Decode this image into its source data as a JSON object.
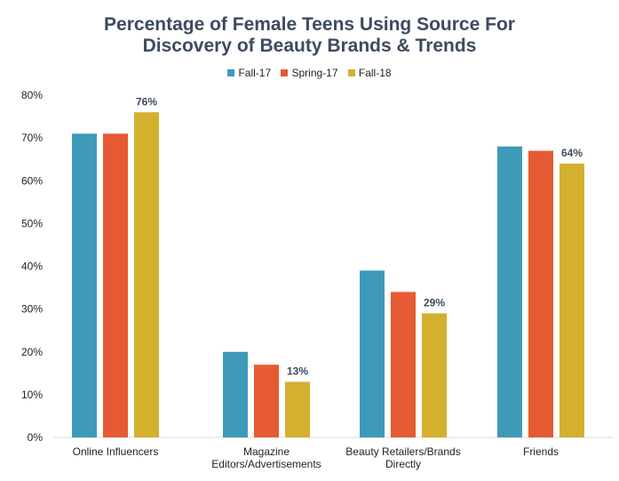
{
  "chart_data": {
    "type": "bar",
    "title_lines": [
      "Percentage of Female Teens Using Source For",
      "Discovery of Beauty Brands & Trends"
    ],
    "categories": [
      [
        "Online Influencers"
      ],
      [
        "Magazine",
        "Editors/Advertisements"
      ],
      [
        "Beauty Retailers/Brands",
        "Directly"
      ],
      [
        "Friends"
      ]
    ],
    "series": [
      {
        "name": "Fall-17",
        "color": "#3e9ab8",
        "values": [
          71,
          20,
          39,
          68
        ]
      },
      {
        "name": "Spring-17",
        "color": "#e55a33",
        "values": [
          71,
          17,
          34,
          67
        ]
      },
      {
        "name": "Fall-18",
        "color": "#d4b02f",
        "values": [
          76,
          13,
          29,
          64
        ]
      }
    ],
    "data_labels": [
      {
        "series": 2,
        "category": 0,
        "text": "76%"
      },
      {
        "series": 2,
        "category": 1,
        "text": "13%"
      },
      {
        "series": 2,
        "category": 2,
        "text": "29%"
      },
      {
        "series": 2,
        "category": 3,
        "text": "64%"
      }
    ],
    "y_ticks": [
      "0%",
      "10%",
      "20%",
      "30%",
      "40%",
      "50%",
      "60%",
      "70%",
      "80%"
    ],
    "ylim": [
      0,
      80
    ],
    "grid": false,
    "legend_position": "top-center"
  }
}
